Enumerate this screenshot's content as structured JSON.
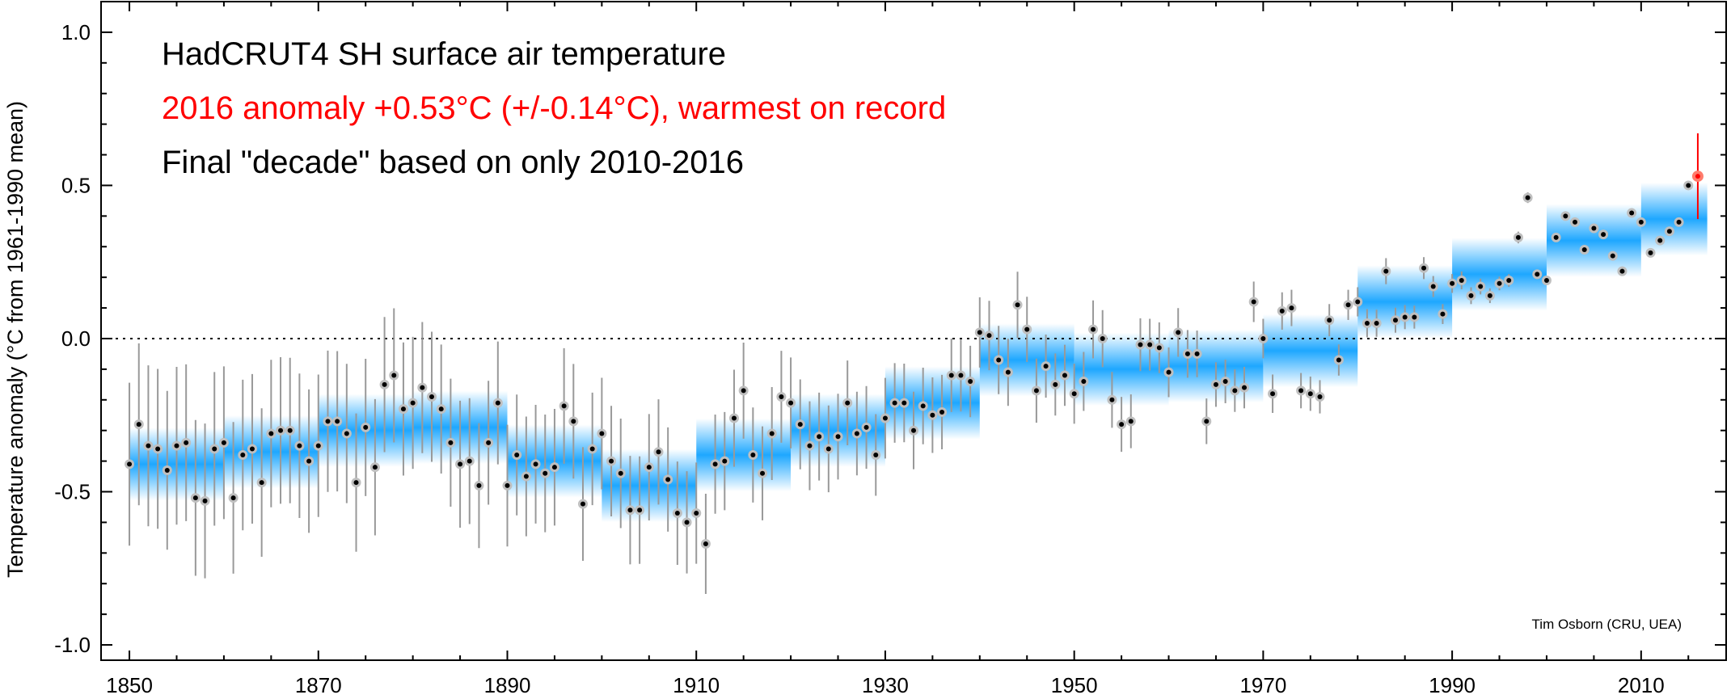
{
  "chart_data": {
    "type": "scatter",
    "annotations": [
      {
        "text": "HadCRUT4 SH surface air temperature",
        "color": "#000000"
      },
      {
        "text": "2016 anomaly +0.53°C (+/-0.14°C), warmest on record",
        "color": "#ff0000"
      },
      {
        "text": "Final \"decade\" based on only 2010-2016",
        "color": "#000000"
      }
    ],
    "credit": "Tim Osborn (CRU, UEA)",
    "ylabel": "Temperature anomaly (°C from 1961-1990 mean)",
    "xlim": [
      1847,
      2019
    ],
    "ylim": [
      -1.05,
      1.1
    ],
    "x_ticks": [
      1850,
      1870,
      1890,
      1910,
      1930,
      1950,
      1970,
      1990,
      2010
    ],
    "x_tick_labels": [
      "1850",
      "1870",
      "1890",
      "1910",
      "1930",
      "1950",
      "1970",
      "1990",
      "2010"
    ],
    "y_ticks": [
      -1.0,
      -0.5,
      0.0,
      0.5,
      1.0
    ],
    "y_tick_labels": [
      "-1.0",
      "-0.5",
      "0.0",
      "0.5",
      "1.0"
    ],
    "reference_line": {
      "y": 0.0,
      "style": "dotted"
    },
    "series": [
      {
        "x": [
          1850,
          1851,
          1852,
          1853,
          1854,
          1855,
          1856,
          1857,
          1858,
          1859,
          1860,
          1861,
          1862,
          1863,
          1864,
          1865,
          1866,
          1867,
          1868,
          1869,
          1870,
          1871,
          1872,
          1873,
          1874,
          1875,
          1876,
          1877,
          1878,
          1879,
          1880,
          1881,
          1882,
          1883,
          1884,
          1885,
          1886,
          1887,
          1888,
          1889,
          1890,
          1891,
          1892,
          1893,
          1894,
          1895,
          1896,
          1897,
          1898,
          1899,
          1900,
          1901,
          1902,
          1903,
          1904,
          1905,
          1906,
          1907,
          1908,
          1909,
          1910,
          1911,
          1912,
          1913,
          1914,
          1915,
          1916,
          1917,
          1918,
          1919,
          1920,
          1921,
          1922,
          1923,
          1924,
          1925,
          1926,
          1927,
          1928,
          1929,
          1930,
          1931,
          1932,
          1933,
          1934,
          1935,
          1936,
          1937,
          1938,
          1939,
          1940,
          1941,
          1942,
          1943,
          1944,
          1945,
          1946,
          1947,
          1948,
          1949,
          1950,
          1951,
          1952,
          1953,
          1954,
          1955,
          1956,
          1957,
          1958,
          1959,
          1960,
          1961,
          1962,
          1963,
          1964,
          1965,
          1966,
          1967,
          1968,
          1969,
          1970,
          1971,
          1972,
          1973,
          1974,
          1975,
          1976,
          1977,
          1978,
          1979,
          1980,
          1981,
          1982,
          1983,
          1984,
          1985,
          1986,
          1987,
          1988,
          1989,
          1990,
          1991,
          1992,
          1993,
          1994,
          1995,
          1996,
          1997,
          1998,
          1999,
          2000,
          2001,
          2002,
          2003,
          2004,
          2005,
          2006,
          2007,
          2008,
          2009,
          2010,
          2011,
          2012,
          2013,
          2014,
          2015,
          2016
        ],
        "y": [
          -0.41,
          -0.28,
          -0.35,
          -0.36,
          -0.43,
          -0.35,
          -0.34,
          -0.52,
          -0.53,
          -0.36,
          -0.34,
          -0.52,
          -0.38,
          -0.36,
          -0.47,
          -0.31,
          -0.3,
          -0.3,
          -0.35,
          -0.4,
          -0.35,
          -0.27,
          -0.27,
          -0.31,
          -0.47,
          -0.29,
          -0.42,
          -0.15,
          -0.12,
          -0.23,
          -0.21,
          -0.16,
          -0.19,
          -0.23,
          -0.34,
          -0.41,
          -0.4,
          -0.48,
          -0.34,
          -0.21,
          -0.48,
          -0.38,
          -0.45,
          -0.41,
          -0.44,
          -0.42,
          -0.22,
          -0.27,
          -0.54,
          -0.36,
          -0.31,
          -0.4,
          -0.44,
          -0.56,
          -0.56,
          -0.42,
          -0.37,
          -0.46,
          -0.57,
          -0.6,
          -0.57,
          -0.67,
          -0.41,
          -0.4,
          -0.26,
          -0.17,
          -0.38,
          -0.44,
          -0.31,
          -0.19,
          -0.21,
          -0.28,
          -0.35,
          -0.32,
          -0.36,
          -0.32,
          -0.21,
          -0.31,
          -0.29,
          -0.38,
          -0.26,
          -0.21,
          -0.21,
          -0.3,
          -0.22,
          -0.25,
          -0.24,
          -0.12,
          -0.12,
          -0.14,
          0.02,
          0.01,
          -0.07,
          -0.11,
          0.11,
          0.03,
          -0.17,
          -0.09,
          -0.15,
          -0.12,
          -0.18,
          -0.14,
          0.03,
          0.0,
          -0.2,
          -0.28,
          -0.27,
          -0.02,
          -0.02,
          -0.03,
          -0.11,
          0.02,
          -0.05,
          -0.05,
          -0.27,
          -0.15,
          -0.14,
          -0.17,
          -0.16,
          0.12,
          0.0,
          -0.18,
          0.09,
          0.1,
          -0.17,
          -0.18,
          -0.19,
          0.06,
          -0.07,
          0.11,
          0.12,
          0.05,
          0.05,
          0.22,
          0.06,
          0.07,
          0.07,
          0.23,
          0.17,
          0.08,
          0.18,
          0.19,
          0.14,
          0.17,
          0.14,
          0.18,
          0.19,
          0.33,
          0.46,
          0.21,
          0.19,
          0.33,
          0.4,
          0.38,
          0.29,
          0.36,
          0.34,
          0.27,
          0.22,
          0.41,
          0.38,
          0.28,
          0.32,
          0.35,
          0.38,
          0.5,
          0.53
        ],
        "uncertainty": 0.14,
        "color": "#000000",
        "highlight": {
          "x": 2016,
          "color": "#ff0000"
        }
      }
    ],
    "decadal_means": [
      {
        "start": 1850,
        "end": 1860,
        "value": -0.41
      },
      {
        "start": 1860,
        "end": 1870,
        "value": -0.37
      },
      {
        "start": 1870,
        "end": 1880,
        "value": -0.3
      },
      {
        "start": 1880,
        "end": 1890,
        "value": -0.29
      },
      {
        "start": 1890,
        "end": 1900,
        "value": -0.4
      },
      {
        "start": 1900,
        "end": 1910,
        "value": -0.48
      },
      {
        "start": 1910,
        "end": 1920,
        "value": -0.38
      },
      {
        "start": 1920,
        "end": 1930,
        "value": -0.3
      },
      {
        "start": 1930,
        "end": 1940,
        "value": -0.21
      },
      {
        "start": 1940,
        "end": 1950,
        "value": -0.07
      },
      {
        "start": 1950,
        "end": 1960,
        "value": -0.1
      },
      {
        "start": 1960,
        "end": 1970,
        "value": -0.09
      },
      {
        "start": 1970,
        "end": 1980,
        "value": -0.04
      },
      {
        "start": 1980,
        "end": 1990,
        "value": 0.12
      },
      {
        "start": 1990,
        "end": 2000,
        "value": 0.21
      },
      {
        "start": 2000,
        "end": 2010,
        "value": 0.32
      },
      {
        "start": 2010,
        "end": 2017,
        "value": 0.39
      }
    ],
    "colors": {
      "decadal_band": "#1ea7ff",
      "points": "#000000",
      "highlight": "#ff0000",
      "error_bars": "#999999"
    },
    "grid": false
  }
}
